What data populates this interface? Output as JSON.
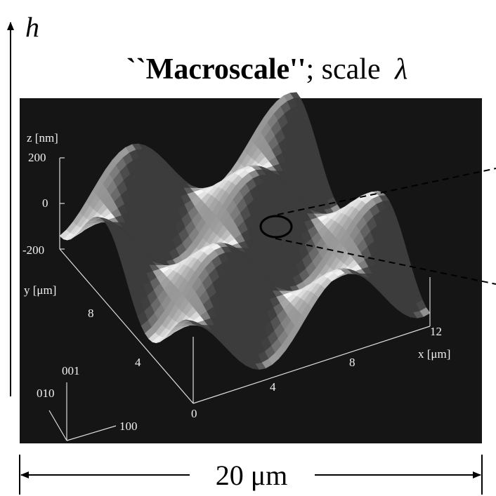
{
  "axis_label": "h",
  "title": {
    "bold": "``Macroscale''",
    "rest": "; scale ",
    "symbol": "λ"
  },
  "image": {
    "z_label": "z [nm]",
    "z_ticks": [
      "200",
      "0",
      "-200"
    ],
    "y_label": "y [μm]",
    "y_ticks": [
      "8",
      "4"
    ],
    "x_label": "x [μm]",
    "x_ticks": [
      "0",
      "4",
      "8",
      "12"
    ],
    "orientation": [
      "001",
      "010",
      "100"
    ]
  },
  "scale_bar": "20 μm"
}
